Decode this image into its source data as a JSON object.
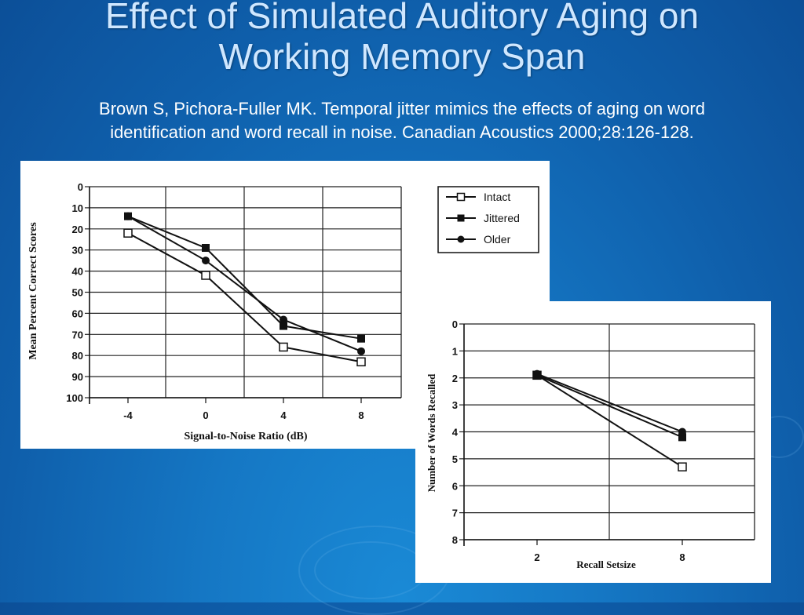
{
  "slide": {
    "title_line1": "Effect of Simulated Auditory Aging on",
    "title_line2": "Working Memory Span",
    "citation_line1": "Brown S, Pichora-Fuller MK. Temporal jitter mimics the effects of aging on word",
    "citation_line2": "identification and word recall in noise. Canadian Acoustics 2000;28:126-128."
  },
  "chart_data": [
    {
      "type": "line",
      "xlabel": "Signal-to-Noise Ratio (dB)",
      "ylabel": "Mean Percent Correct Scores",
      "categories": [
        "-4",
        "0",
        "4",
        "8"
      ],
      "ylim": [
        0,
        100
      ],
      "yticks": [
        "0",
        "10",
        "20",
        "30",
        "40",
        "50",
        "60",
        "70",
        "80",
        "90",
        "100"
      ],
      "grid": true,
      "legend_position": "top-right",
      "series": [
        {
          "name": "Intact",
          "marker": "open-square",
          "values": [
            22,
            42,
            76,
            83
          ]
        },
        {
          "name": "Jittered",
          "marker": "filled-square",
          "values": [
            14,
            29,
            66,
            72
          ]
        },
        {
          "name": "Older",
          "marker": "filled-circle",
          "values": [
            14,
            35,
            63,
            78
          ]
        }
      ]
    },
    {
      "type": "line",
      "xlabel": "Recall Setsize",
      "ylabel": "Number of Words Recalled",
      "categories": [
        "2",
        "8"
      ],
      "ylim": [
        0,
        8
      ],
      "yticks": [
        "0",
        "1",
        "2",
        "3",
        "4",
        "5",
        "6",
        "7",
        "8"
      ],
      "grid": true,
      "series": [
        {
          "name": "Intact",
          "marker": "open-square",
          "values": [
            1.9,
            5.3
          ]
        },
        {
          "name": "Jittered",
          "marker": "filled-square",
          "values": [
            1.9,
            4.2
          ]
        },
        {
          "name": "Older",
          "marker": "filled-circle",
          "values": [
            1.85,
            4.0
          ]
        }
      ]
    }
  ]
}
